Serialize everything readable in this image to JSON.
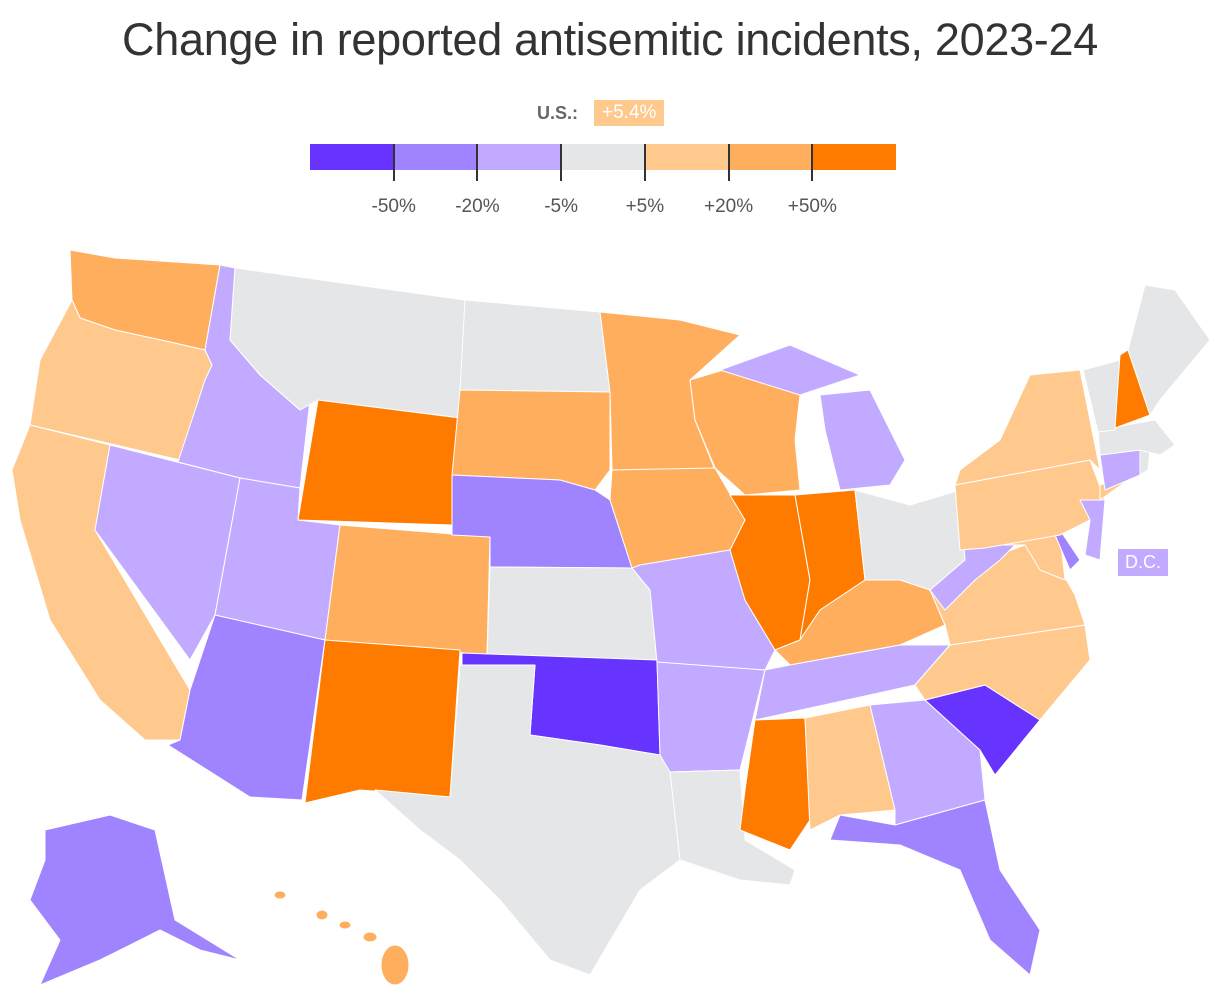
{
  "title": "Change in reported antisemitic incidents, 2023-24",
  "us_summary": {
    "label": "U.S.:",
    "value": "+5.4%"
  },
  "legend": {
    "colors": [
      "#6633ff",
      "#a084ff",
      "#c1aaff",
      "#e5e6e8",
      "#ffc98d",
      "#ffae5e",
      "#ff7b00"
    ],
    "ticks": [
      "-50%",
      "-20%",
      "-5%",
      "+5%",
      "+20%",
      "+50%"
    ]
  },
  "dc_label": "D.C.",
  "states": {
    "WA": 5,
    "OR": 4,
    "CA": 4,
    "ID": 2,
    "NV": 2,
    "UT": 2,
    "AZ": 1,
    "MT": 3,
    "WY": 6,
    "CO": 5,
    "NM": 6,
    "ND": 3,
    "SD": 5,
    "NE": 1,
    "KS": 3,
    "OK": 0,
    "TX": 3,
    "MN": 5,
    "IA": 5,
    "MO": 2,
    "AR": 2,
    "LA": 3,
    "WI": 5,
    "IL": 6,
    "MI": 2,
    "IN": 6,
    "OH": 3,
    "KY": 5,
    "TN": 2,
    "MS": 6,
    "AL": 4,
    "GA": 2,
    "FL": 1,
    "SC": 0,
    "NC": 4,
    "VA": 4,
    "WV": 2,
    "MD": 4,
    "DE": 1,
    "NJ": 2,
    "PA": 4,
    "NY": 4,
    "CT": 2,
    "RI": 3,
    "MA": 3,
    "VT": 3,
    "NH": 6,
    "ME": 3,
    "AK": 1,
    "HI": 5,
    "DC": 2
  }
}
